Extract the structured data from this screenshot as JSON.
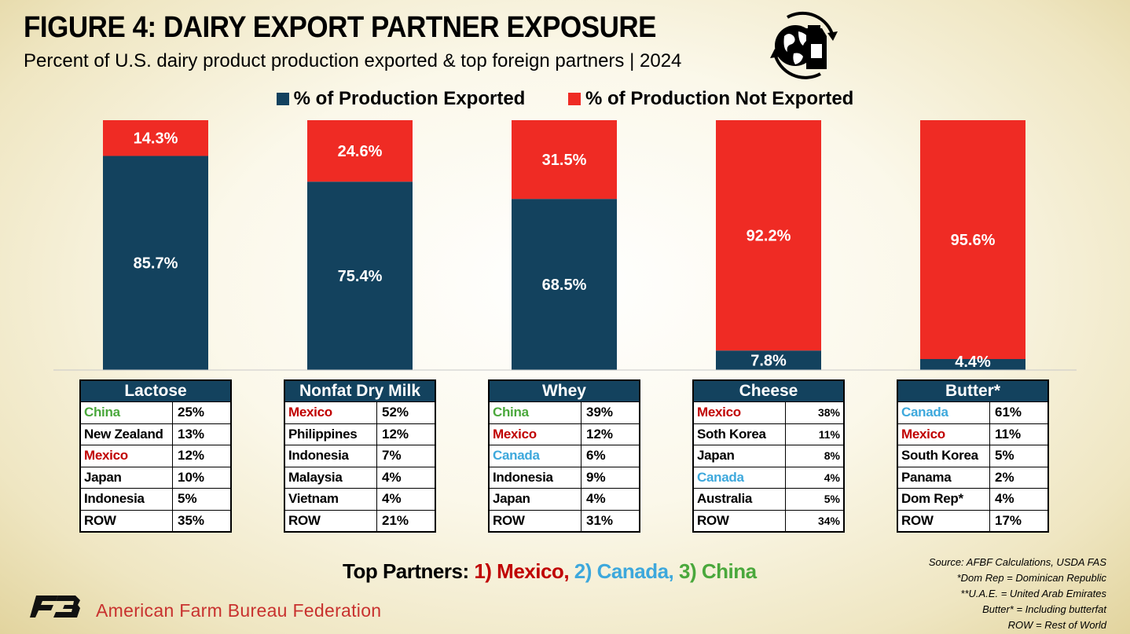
{
  "title": "FIGURE 4: DAIRY EXPORT PARTNER EXPOSURE",
  "subtitle": "Percent of U.S. dairy product production exported & top foreign partners | 2024",
  "colors": {
    "exported": "#13425e",
    "not_exported": "#ef2b24",
    "mexico": "#c00000",
    "canada": "#3da8dc",
    "china": "#4aa83c",
    "default": "#000000"
  },
  "chart_data": {
    "type": "bar",
    "stacked": true,
    "categories": [
      "Lactose",
      "Nonfat Dry Milk",
      "Whey",
      "Cheese",
      "Butter*"
    ],
    "series": [
      {
        "name": "% of Production Exported",
        "values": [
          85.7,
          75.4,
          68.5,
          7.8,
          4.4
        ],
        "labels": [
          "85.7%",
          "75.4%",
          "68.5%",
          "7.8%",
          "4.4%"
        ]
      },
      {
        "name": "% of Production Not Exported",
        "values": [
          14.3,
          24.6,
          31.5,
          92.2,
          95.6
        ],
        "labels": [
          "14.3%",
          "24.6%",
          "31.5%",
          "92.2%",
          "95.6%"
        ]
      }
    ],
    "ylim": [
      0,
      100
    ],
    "legend": "top-center"
  },
  "tables": [
    {
      "header": "Lactose",
      "small_share": false,
      "rows": [
        {
          "country": "China",
          "share": "25%",
          "tone": "china"
        },
        {
          "country": "New Zealand",
          "share": "13%",
          "tone": "default"
        },
        {
          "country": "Mexico",
          "share": "12%",
          "tone": "mexico"
        },
        {
          "country": "Japan",
          "share": "10%",
          "tone": "default"
        },
        {
          "country": "Indonesia",
          "share": "5%",
          "tone": "default"
        },
        {
          "country": "ROW",
          "share": "35%",
          "tone": "default"
        }
      ]
    },
    {
      "header": "Nonfat Dry Milk",
      "small_share": false,
      "rows": [
        {
          "country": "Mexico",
          "share": "52%",
          "tone": "mexico"
        },
        {
          "country": "Philippines",
          "share": "12%",
          "tone": "default"
        },
        {
          "country": "Indonesia",
          "share": "7%",
          "tone": "default"
        },
        {
          "country": "Malaysia",
          "share": "4%",
          "tone": "default"
        },
        {
          "country": "Vietnam",
          "share": "4%",
          "tone": "default"
        },
        {
          "country": "ROW",
          "share": "21%",
          "tone": "default"
        }
      ]
    },
    {
      "header": "Whey",
      "small_share": false,
      "rows": [
        {
          "country": "China",
          "share": "39%",
          "tone": "china"
        },
        {
          "country": "Mexico",
          "share": "12%",
          "tone": "mexico"
        },
        {
          "country": "Canada",
          "share": "6%",
          "tone": "canada"
        },
        {
          "country": "Indonesia",
          "share": "9%",
          "tone": "default"
        },
        {
          "country": "Japan",
          "share": "4%",
          "tone": "default"
        },
        {
          "country": "ROW",
          "share": "31%",
          "tone": "default"
        }
      ]
    },
    {
      "header": "Cheese",
      "small_share": true,
      "rows": [
        {
          "country": "Mexico",
          "share": "38%",
          "tone": "mexico"
        },
        {
          "country": "Soth Korea",
          "share": "11%",
          "tone": "default"
        },
        {
          "country": "Japan",
          "share": "8%",
          "tone": "default"
        },
        {
          "country": "Canada",
          "share": "4%",
          "tone": "canada"
        },
        {
          "country": "Australia",
          "share": "5%",
          "tone": "default"
        },
        {
          "country": "ROW",
          "share": "34%",
          "tone": "default"
        }
      ]
    },
    {
      "header": "Butter*",
      "small_share": false,
      "rows": [
        {
          "country": "Canada",
          "share": "61%",
          "tone": "canada"
        },
        {
          "country": "Mexico",
          "share": "11%",
          "tone": "mexico"
        },
        {
          "country": "South Korea",
          "share": "5%",
          "tone": "default"
        },
        {
          "country": "Panama",
          "share": "2%",
          "tone": "default"
        },
        {
          "country": "Dom Rep*",
          "share": "4%",
          "tone": "default"
        },
        {
          "country": "ROW",
          "share": "17%",
          "tone": "default"
        }
      ]
    }
  ],
  "top_partners": {
    "prefix": "Top Partners: ",
    "mexico": "1) Mexico,",
    "canada": "2) Canada,",
    "china": "3) China"
  },
  "notes": [
    "Source: AFBF Calculations, USDA FAS",
    "*Dom Rep = Dominican Republic",
    "**U.A.E. = United Arab Emirates",
    "Butter* = Including butterfat",
    "ROW = Rest of World"
  ],
  "organization": "American Farm Bureau Federation",
  "icons": {
    "header_icon": "globe-milk-carton-icon",
    "org_logo": "fb-logo-icon"
  }
}
